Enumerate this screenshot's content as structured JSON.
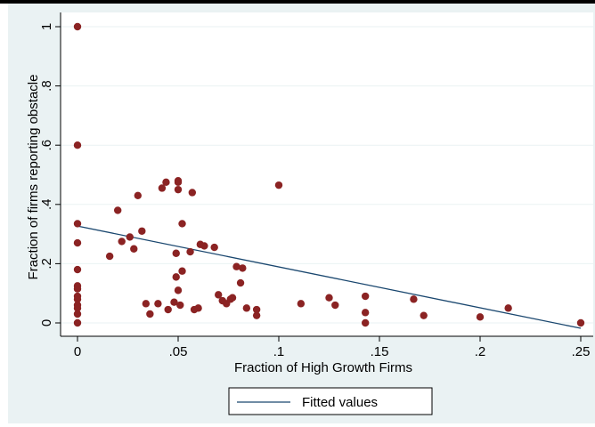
{
  "chart_data": {
    "type": "scatter",
    "title": "",
    "xlabel": "Fraction of High Growth Firms",
    "ylabel": "Fraction of firms reporting obstacle",
    "xlim": [
      -0.008,
      0.252
    ],
    "ylim": [
      -0.03,
      1.02
    ],
    "x_ticks": [
      0,
      0.05,
      0.1,
      0.15,
      0.2,
      0.25
    ],
    "x_tick_labels": [
      "0",
      ".05",
      ".1",
      ".15",
      ".2",
      ".25"
    ],
    "y_ticks": [
      0,
      0.2,
      0.4,
      0.6,
      0.8,
      1
    ],
    "y_tick_labels": [
      "0",
      ".2",
      ".4",
      ".6",
      ".8",
      "1"
    ],
    "grid": "horizontal",
    "legend_position": "bottom",
    "legend": [
      "Fitted values"
    ],
    "colors": {
      "points": "#8b2323",
      "fit_line": "#1a476f",
      "outer_background": "#eaf2f3",
      "plot_background": "#ffffff",
      "grid": "#eaf2f3"
    },
    "series": [
      {
        "name": "",
        "kind": "scatter",
        "points": [
          [
            0,
            1.0
          ],
          [
            0,
            0.6
          ],
          [
            0,
            0.335
          ],
          [
            0,
            0.27
          ],
          [
            0,
            0.18
          ],
          [
            0,
            0.125
          ],
          [
            0,
            0.115
          ],
          [
            0,
            0.09
          ],
          [
            0,
            0.08
          ],
          [
            0,
            0.06
          ],
          [
            0,
            0.05
          ],
          [
            0,
            0.03
          ],
          [
            0,
            0.0
          ],
          [
            0.016,
            0.225
          ],
          [
            0.02,
            0.38
          ],
          [
            0.022,
            0.275
          ],
          [
            0.026,
            0.29
          ],
          [
            0.028,
            0.25
          ],
          [
            0.03,
            0.43
          ],
          [
            0.032,
            0.31
          ],
          [
            0.034,
            0.065
          ],
          [
            0.036,
            0.03
          ],
          [
            0.04,
            0.065
          ],
          [
            0.042,
            0.455
          ],
          [
            0.044,
            0.475
          ],
          [
            0.045,
            0.045
          ],
          [
            0.048,
            0.07
          ],
          [
            0.049,
            0.155
          ],
          [
            0.049,
            0.235
          ],
          [
            0.05,
            0.48
          ],
          [
            0.05,
            0.475
          ],
          [
            0.05,
            0.45
          ],
          [
            0.05,
            0.11
          ],
          [
            0.051,
            0.06
          ],
          [
            0.052,
            0.335
          ],
          [
            0.052,
            0.175
          ],
          [
            0.056,
            0.24
          ],
          [
            0.057,
            0.44
          ],
          [
            0.058,
            0.045
          ],
          [
            0.06,
            0.05
          ],
          [
            0.061,
            0.265
          ],
          [
            0.063,
            0.26
          ],
          [
            0.068,
            0.255
          ],
          [
            0.07,
            0.095
          ],
          [
            0.072,
            0.075
          ],
          [
            0.074,
            0.065
          ],
          [
            0.076,
            0.08
          ],
          [
            0.077,
            0.085
          ],
          [
            0.079,
            0.19
          ],
          [
            0.081,
            0.135
          ],
          [
            0.082,
            0.185
          ],
          [
            0.084,
            0.05
          ],
          [
            0.089,
            0.025
          ],
          [
            0.089,
            0.045
          ],
          [
            0.1,
            0.465
          ],
          [
            0.111,
            0.065
          ],
          [
            0.125,
            0.085
          ],
          [
            0.128,
            0.06
          ],
          [
            0.143,
            0.09
          ],
          [
            0.143,
            0.035
          ],
          [
            0.143,
            0.0
          ],
          [
            0.167,
            0.08
          ],
          [
            0.172,
            0.025
          ],
          [
            0.2,
            0.02
          ],
          [
            0.214,
            0.05
          ],
          [
            0.25,
            0.0
          ]
        ]
      },
      {
        "name": "Fitted values",
        "kind": "line",
        "points": [
          [
            0,
            0.327
          ],
          [
            0.25,
            -0.018
          ]
        ]
      }
    ]
  }
}
